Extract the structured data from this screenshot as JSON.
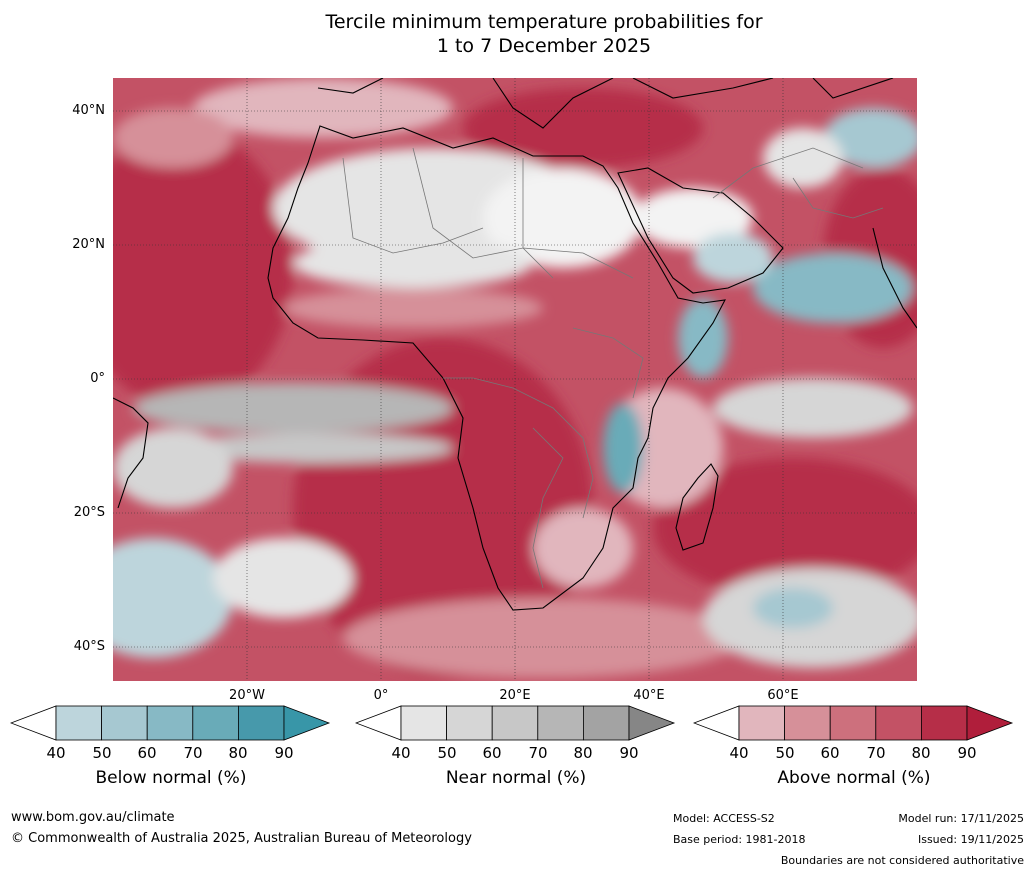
{
  "title": {
    "line1": "Tercile minimum temperature probabilities for",
    "line2": "1 to 7 December 2025"
  },
  "map": {
    "lat_labels": [
      "40°N",
      "20°N",
      "0°",
      "20°S",
      "40°S"
    ],
    "lon_labels": [
      "20°W",
      "0°",
      "20°E",
      "40°E",
      "60°E"
    ]
  },
  "legend": {
    "ticks": [
      "40",
      "50",
      "60",
      "70",
      "80",
      "90"
    ],
    "below": {
      "label": "Below normal (%)",
      "colors": [
        "#bdd5dc",
        "#a6c8d1",
        "#87b9c5",
        "#69abb8",
        "#4799ab",
        "#3896a8"
      ]
    },
    "near": {
      "label": "Near normal (%)",
      "colors": [
        "#e5e5e5",
        "#d6d6d6",
        "#c7c7c7",
        "#b6b6b6",
        "#a3a3a3",
        "#868686"
      ]
    },
    "above": {
      "label": "Above normal (%)",
      "colors": [
        "#e1b6bd",
        "#d69099",
        "#cd707d",
        "#c35265",
        "#b62e48",
        "#b01e3b"
      ]
    }
  },
  "footer": {
    "website": "www.bom.gov.au/climate",
    "copyright": "© Commonwealth of Australia 2025, Australian Bureau of Meteorology",
    "model": "Model: ACCESS-S2",
    "base_period": "Base period: 1981-2018",
    "model_run": "Model run: 17/11/2025",
    "issued": "Issued: 19/11/2025",
    "boundaries": "Boundaries are not considered authoritative"
  }
}
